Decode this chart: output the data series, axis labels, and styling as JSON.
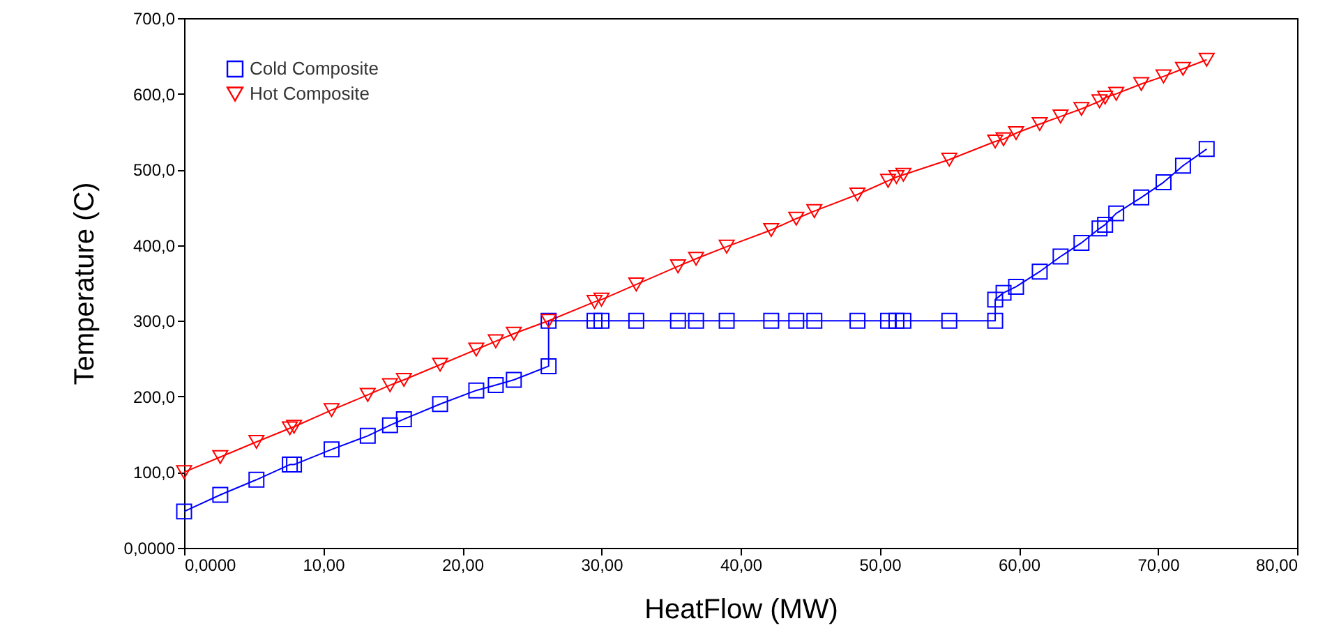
{
  "chart_data": {
    "type": "line",
    "xlabel": "HeatFlow (MW)",
    "ylabel": "Temperature (C)",
    "xlim": [
      0,
      80
    ],
    "ylim": [
      0,
      700
    ],
    "xticks": [
      {
        "value": 0,
        "label": "0,0000"
      },
      {
        "value": 10,
        "label": "10,00"
      },
      {
        "value": 20,
        "label": "20,00"
      },
      {
        "value": 30,
        "label": "30,00"
      },
      {
        "value": 40,
        "label": "40,00"
      },
      {
        "value": 50,
        "label": "50,00"
      },
      {
        "value": 60,
        "label": "60,00"
      },
      {
        "value": 70,
        "label": "70,00"
      },
      {
        "value": 80,
        "label": "80,00"
      }
    ],
    "yticks": [
      {
        "value": 0,
        "label": "0,0000"
      },
      {
        "value": 100,
        "label": "100,0"
      },
      {
        "value": 200,
        "label": "200,0"
      },
      {
        "value": 300,
        "label": "300,0"
      },
      {
        "value": 400,
        "label": "400,0"
      },
      {
        "value": 500,
        "label": "500,0"
      },
      {
        "value": 600,
        "label": "600,0"
      },
      {
        "value": 700,
        "label": "700,0"
      }
    ],
    "grid": false,
    "legend": "top left",
    "series": [
      {
        "name": "Cold Composite",
        "color": "#0000ff",
        "marker": "square",
        "x": [
          0,
          2.6,
          5.2,
          7.6,
          7.9,
          10.6,
          13.2,
          14.8,
          15.8,
          18.4,
          21,
          22.4,
          23.7,
          26.2,
          26.2,
          29.5,
          30,
          32.5,
          35.5,
          36.8,
          39,
          42.2,
          44,
          45.3,
          48.4,
          50.6,
          51.2,
          51.7,
          55,
          58.3,
          58.3,
          58.9,
          59.8,
          61.5,
          63,
          64.5,
          65.8,
          66.2,
          67,
          68.8,
          70.4,
          71.8,
          73.5
        ],
        "values": [
          48,
          70,
          90,
          110,
          110,
          130,
          148,
          162,
          170,
          190,
          208,
          215,
          222,
          240,
          300,
          300,
          300,
          300,
          300,
          300,
          300,
          300,
          300,
          300,
          300,
          300,
          300,
          300,
          300,
          300,
          328,
          337,
          345,
          365,
          385,
          403,
          422,
          427,
          442,
          463,
          483,
          505,
          527
        ]
      },
      {
        "name": "Hot Composite",
        "color": "#ff0000",
        "marker": "triangle",
        "x": [
          0,
          2.6,
          5.2,
          7.6,
          7.9,
          10.6,
          13.2,
          14.8,
          15.8,
          18.4,
          21,
          22.4,
          23.7,
          26.2,
          29.5,
          30,
          32.5,
          35.5,
          36.8,
          39,
          42.2,
          44,
          45.3,
          48.4,
          50.6,
          51.2,
          51.7,
          55,
          58.3,
          58.9,
          59.8,
          61.5,
          63,
          64.5,
          65.8,
          66.2,
          67,
          68.8,
          70.4,
          71.8,
          73.5
        ],
        "values": [
          100,
          120,
          140,
          158,
          160,
          182,
          202,
          215,
          222,
          242,
          262,
          273,
          283,
          300,
          325,
          328,
          348,
          372,
          382,
          398,
          420,
          435,
          445,
          467,
          485,
          490,
          493,
          513,
          537,
          540,
          548,
          560,
          570,
          580,
          590,
          595,
          600,
          613,
          623,
          633,
          645
        ]
      }
    ]
  }
}
